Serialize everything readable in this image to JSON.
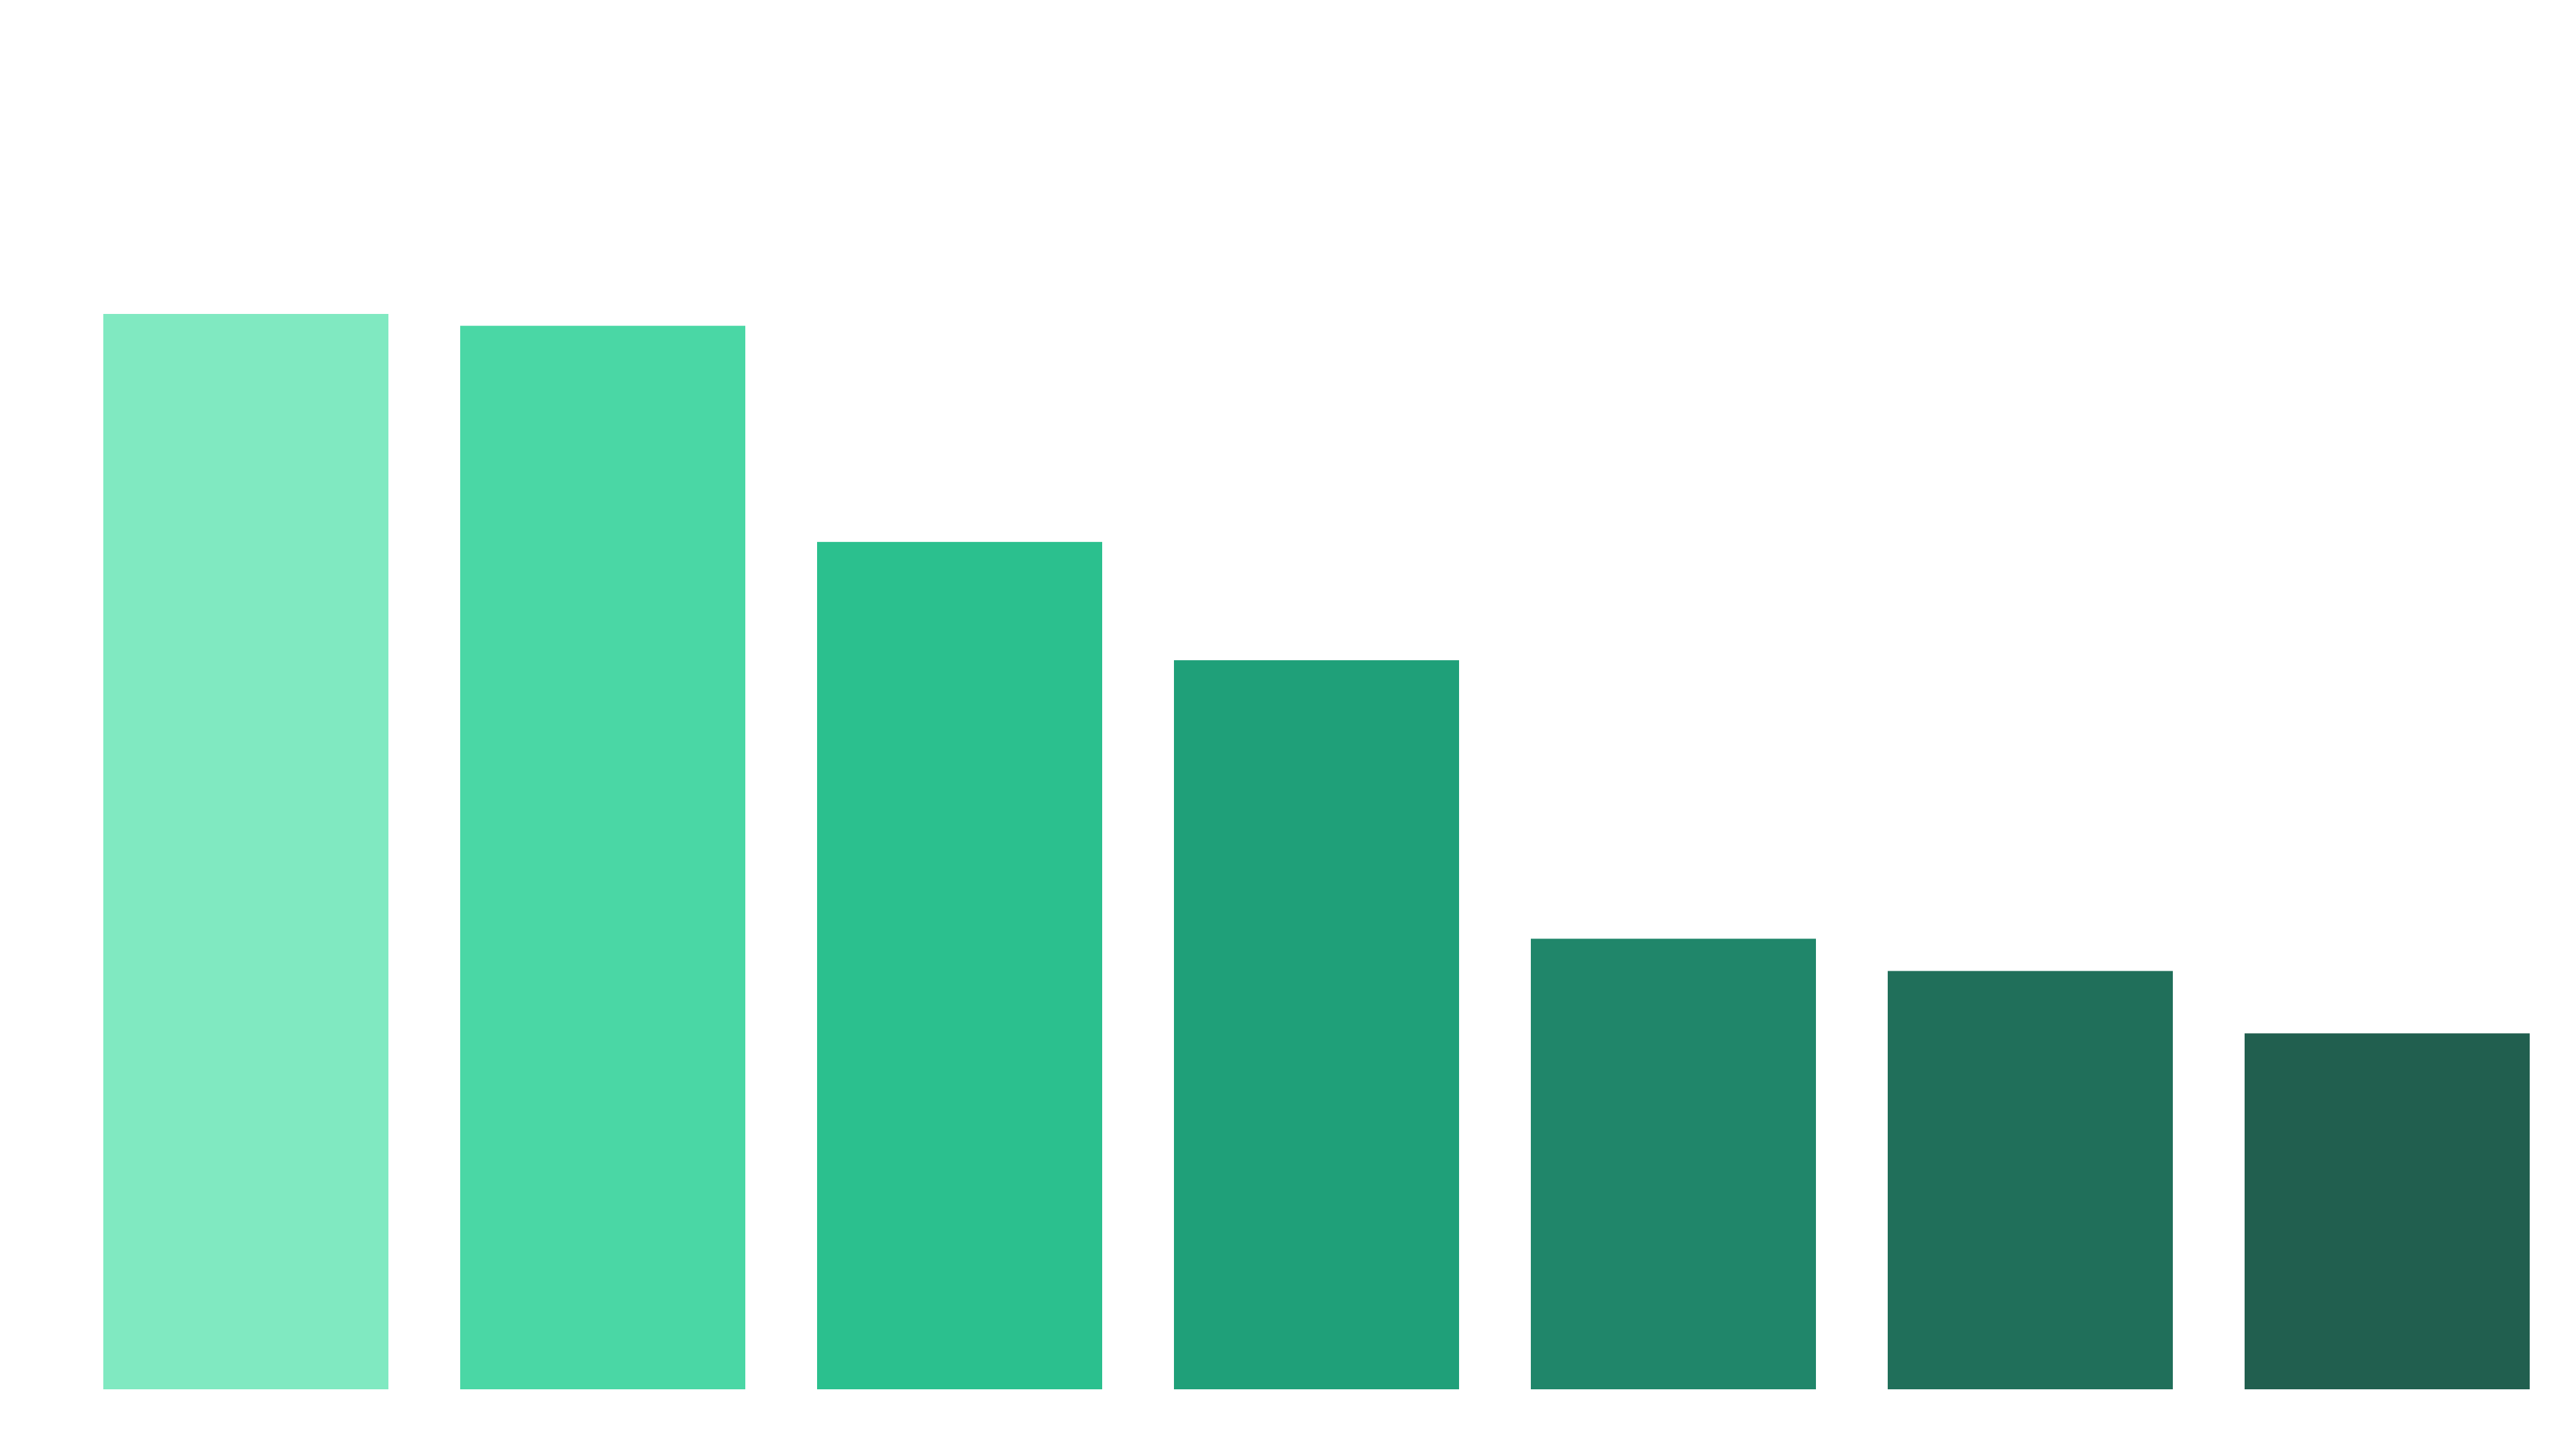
{
  "chart_data": {
    "type": "bar",
    "title": "",
    "xlabel": "",
    "ylabel": "",
    "grid": false,
    "legend": "none",
    "ylim": [
      0,
      100
    ],
    "values": [
      100,
      98.9,
      78.8,
      67.8,
      41.9,
      38.9,
      33.1
    ],
    "colors": [
      "#80e9c1",
      "#4ad7a5",
      "#2bc08e",
      "#1fa079",
      "#20866a",
      "#206f5a",
      "#215f4f"
    ]
  }
}
